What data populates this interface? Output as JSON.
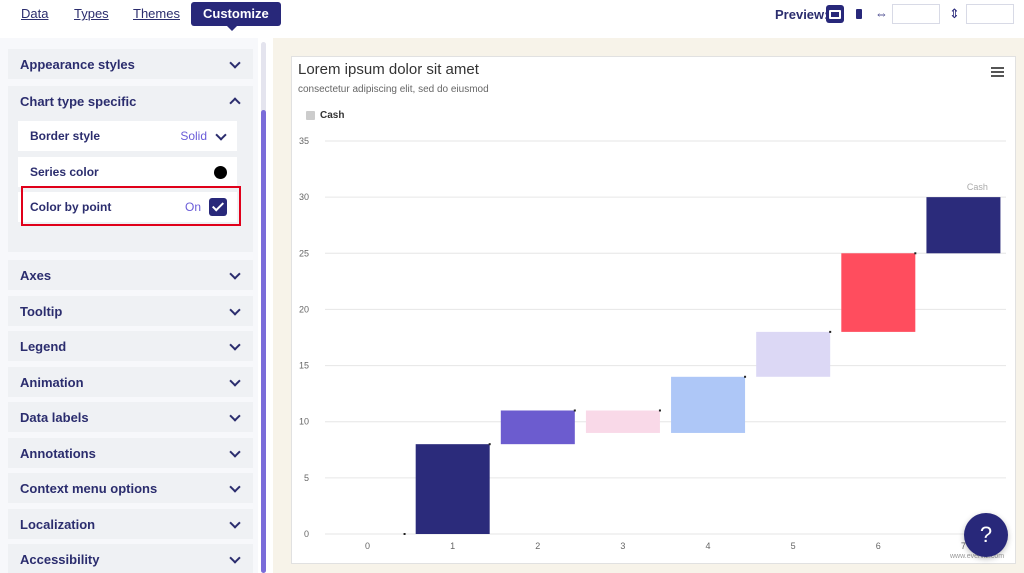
{
  "nav": {
    "tabs": [
      {
        "label": "Data"
      },
      {
        "label": "Types"
      },
      {
        "label": "Themes"
      },
      {
        "label": "Customize"
      }
    ],
    "active_tab": "Customize",
    "preview_label": "Preview:",
    "width_value": "",
    "height_value": ""
  },
  "sidebar": {
    "sections": [
      {
        "label": "Appearance styles"
      },
      {
        "label": "Chart type specific"
      },
      {
        "label": "Axes"
      },
      {
        "label": "Tooltip"
      },
      {
        "label": "Legend"
      },
      {
        "label": "Animation"
      },
      {
        "label": "Data labels"
      },
      {
        "label": "Annotations"
      },
      {
        "label": "Context menu options"
      },
      {
        "label": "Localization"
      },
      {
        "label": "Accessibility"
      }
    ],
    "chart_type_specific": {
      "border_style_label": "Border style",
      "border_style_value": "Solid",
      "series_color_label": "Series color",
      "series_color": "#000000",
      "color_by_point_label": "Color by point",
      "color_by_point_value": "On"
    }
  },
  "chart": {
    "title": "Lorem ipsum dolor sit amet",
    "subtitle": "consectetur adipiscing elit, sed do eiusmod",
    "credit": "www.everviz.com"
  },
  "help_label": "?",
  "chart_data": {
    "type": "bar",
    "subtype": "waterfall",
    "categories": [
      "0",
      "1",
      "2",
      "3",
      "4",
      "5",
      "6",
      "7"
    ],
    "series": [
      {
        "name": "Cash",
        "low": [
          0,
          0,
          8,
          9,
          9,
          14,
          18,
          25
        ],
        "high": [
          0,
          8,
          11,
          11,
          14,
          18,
          25,
          30
        ],
        "colors": [
          "#2b2b7b",
          "#2b2b7b",
          "#6c5ccf",
          "#f9d9e8",
          "#aec7f7",
          "#dcd8f5",
          "#ff4d5e",
          "#2b2b7b"
        ]
      }
    ],
    "y_ticks": [
      "0",
      "5",
      "10",
      "15",
      "20",
      "25",
      "30",
      "35"
    ],
    "ylim": [
      0,
      35
    ],
    "end_label": "Cash",
    "legend": "top-left",
    "grid": true
  }
}
